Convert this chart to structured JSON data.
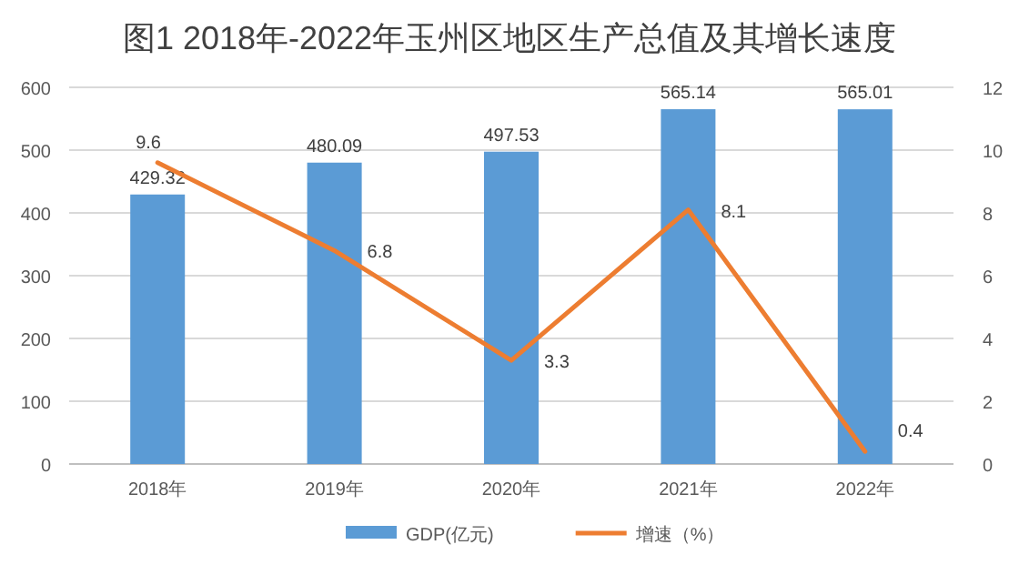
{
  "chart_data": {
    "type": "bar",
    "title": "图1  2018年-2022年玉州区地区生产总值及其增长速度",
    "categories": [
      "2018年",
      "2019年",
      "2020年",
      "2021年",
      "2022年"
    ],
    "series": [
      {
        "name": "GDP(亿元)",
        "color": "#5b9bd5",
        "values": [
          429.32,
          480.09,
          497.53,
          565.14,
          565.01
        ]
      },
      {
        "name": "增速（%）",
        "color": "#ed7d31",
        "type": "line",
        "axis": "y2",
        "values": [
          9.6,
          6.8,
          3.3,
          8.1,
          0.4
        ]
      }
    ],
    "ylim": [
      0,
      600
    ],
    "yticks": [
      0,
      100,
      200,
      300,
      400,
      500,
      600
    ],
    "y2lim": [
      0,
      12
    ],
    "y2ticks": [
      0,
      2,
      4,
      6,
      8,
      10,
      12
    ],
    "grid": "y",
    "legend": "bottom",
    "data_labels": true,
    "marker": "none",
    "line_style": "solid"
  }
}
